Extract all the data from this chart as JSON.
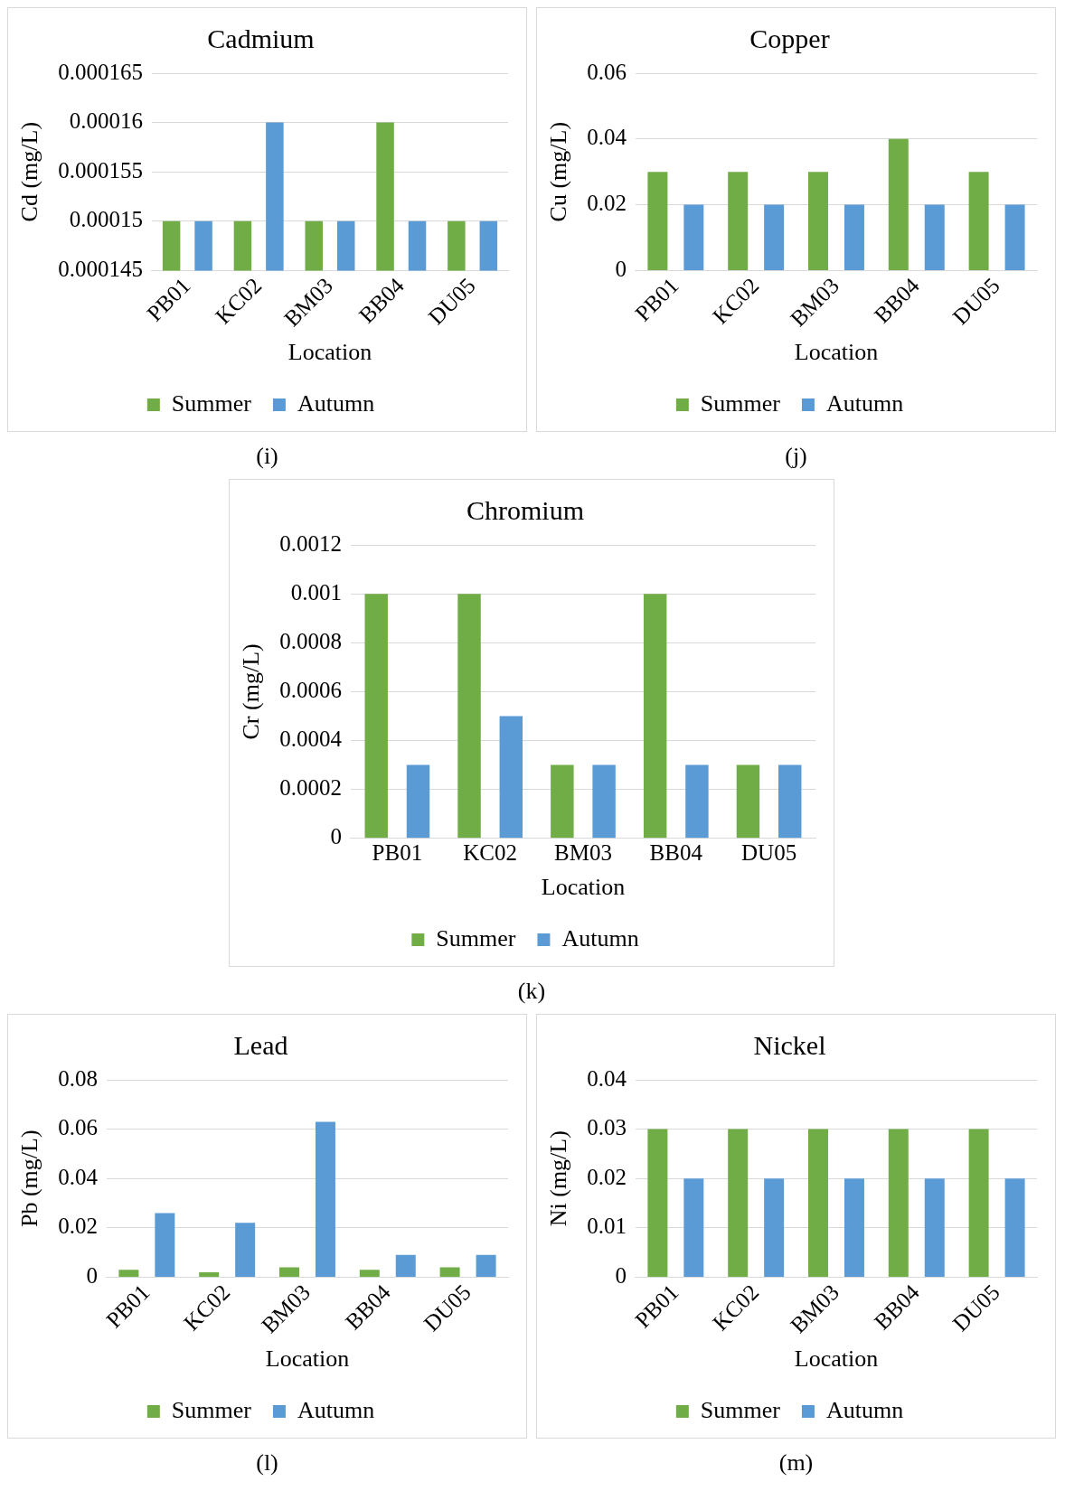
{
  "chart_data": [
    {
      "type": "bar",
      "title": "Cadmium",
      "xlabel": "Location",
      "ylabel": "Cd (mg/L)",
      "categories": [
        "PB01",
        "KC02",
        "BM03",
        "BB04",
        "DU05"
      ],
      "series": [
        {
          "name": "Summer",
          "color": "#70ad47",
          "values": [
            0.00015,
            0.00015,
            0.00015,
            0.00016,
            0.00015
          ]
        },
        {
          "name": "Autumn",
          "color": "#5b9bd5",
          "values": [
            0.00015,
            0.00016,
            0.00015,
            0.00015,
            0.00015
          ]
        }
      ],
      "ylim": [
        0.000145,
        0.000165
      ],
      "yticks": [
        0.000145,
        0.00015,
        0.000155,
        0.00016,
        0.000165
      ],
      "grid": "y",
      "legend": "bottom",
      "annotations": [
        "(i)"
      ]
    },
    {
      "type": "bar",
      "title": "Copper",
      "xlabel": "Location",
      "ylabel": "Cu (mg/L)",
      "categories": [
        "PB01",
        "KC02",
        "BM03",
        "BB04",
        "DU05"
      ],
      "series": [
        {
          "name": "Summer",
          "color": "#70ad47",
          "values": [
            0.03,
            0.03,
            0.03,
            0.04,
            0.03
          ]
        },
        {
          "name": "Autumn",
          "color": "#5b9bd5",
          "values": [
            0.02,
            0.02,
            0.02,
            0.02,
            0.02
          ]
        }
      ],
      "ylim": [
        0,
        0.06
      ],
      "yticks": [
        0,
        0.02,
        0.04,
        0.06
      ],
      "grid": "y",
      "legend": "bottom",
      "annotations": [
        "(j)"
      ]
    },
    {
      "type": "bar",
      "title": "Chromium",
      "xlabel": "Location",
      "ylabel": "Cr (mg/L)",
      "categories": [
        "PB01",
        "KC02",
        "BM03",
        "BB04",
        "DU05"
      ],
      "series": [
        {
          "name": "Summer",
          "color": "#70ad47",
          "values": [
            0.001,
            0.001,
            0.0003,
            0.001,
            0.0003
          ]
        },
        {
          "name": "Autumn",
          "color": "#5b9bd5",
          "values": [
            0.0003,
            0.0005,
            0.0003,
            0.0003,
            0.0003
          ]
        }
      ],
      "ylim": [
        0,
        0.0012
      ],
      "yticks": [
        0,
        0.0002,
        0.0004,
        0.0006,
        0.0008,
        0.001,
        0.0012
      ],
      "grid": "y",
      "legend": "bottom",
      "annotations": [
        "(k)"
      ]
    },
    {
      "type": "bar",
      "title": "Lead",
      "xlabel": "Location",
      "ylabel": "Pb (mg/L)",
      "categories": [
        "PB01",
        "KC02",
        "BM03",
        "BB04",
        "DU05"
      ],
      "series": [
        {
          "name": "Summer",
          "color": "#70ad47",
          "values": [
            0.003,
            0.002,
            0.004,
            0.003,
            0.004
          ]
        },
        {
          "name": "Autumn",
          "color": "#5b9bd5",
          "values": [
            0.026,
            0.022,
            0.063,
            0.009,
            0.009
          ]
        }
      ],
      "ylim": [
        0,
        0.08
      ],
      "yticks": [
        0,
        0.02,
        0.04,
        0.06,
        0.08
      ],
      "grid": "y",
      "legend": "bottom",
      "annotations": [
        "(l)"
      ]
    },
    {
      "type": "bar",
      "title": "Nickel",
      "xlabel": "Location",
      "ylabel": "Ni (mg/L)",
      "categories": [
        "PB01",
        "KC02",
        "BM03",
        "BB04",
        "DU05"
      ],
      "series": [
        {
          "name": "Summer",
          "color": "#70ad47",
          "values": [
            0.03,
            0.03,
            0.03,
            0.03,
            0.03
          ]
        },
        {
          "name": "Autumn",
          "color": "#5b9bd5",
          "values": [
            0.02,
            0.02,
            0.02,
            0.02,
            0.02
          ]
        }
      ],
      "ylim": [
        0,
        0.04
      ],
      "yticks": [
        0,
        0.01,
        0.02,
        0.03,
        0.04
      ],
      "grid": "y",
      "legend": "bottom",
      "annotations": [
        "(m)"
      ]
    }
  ]
}
